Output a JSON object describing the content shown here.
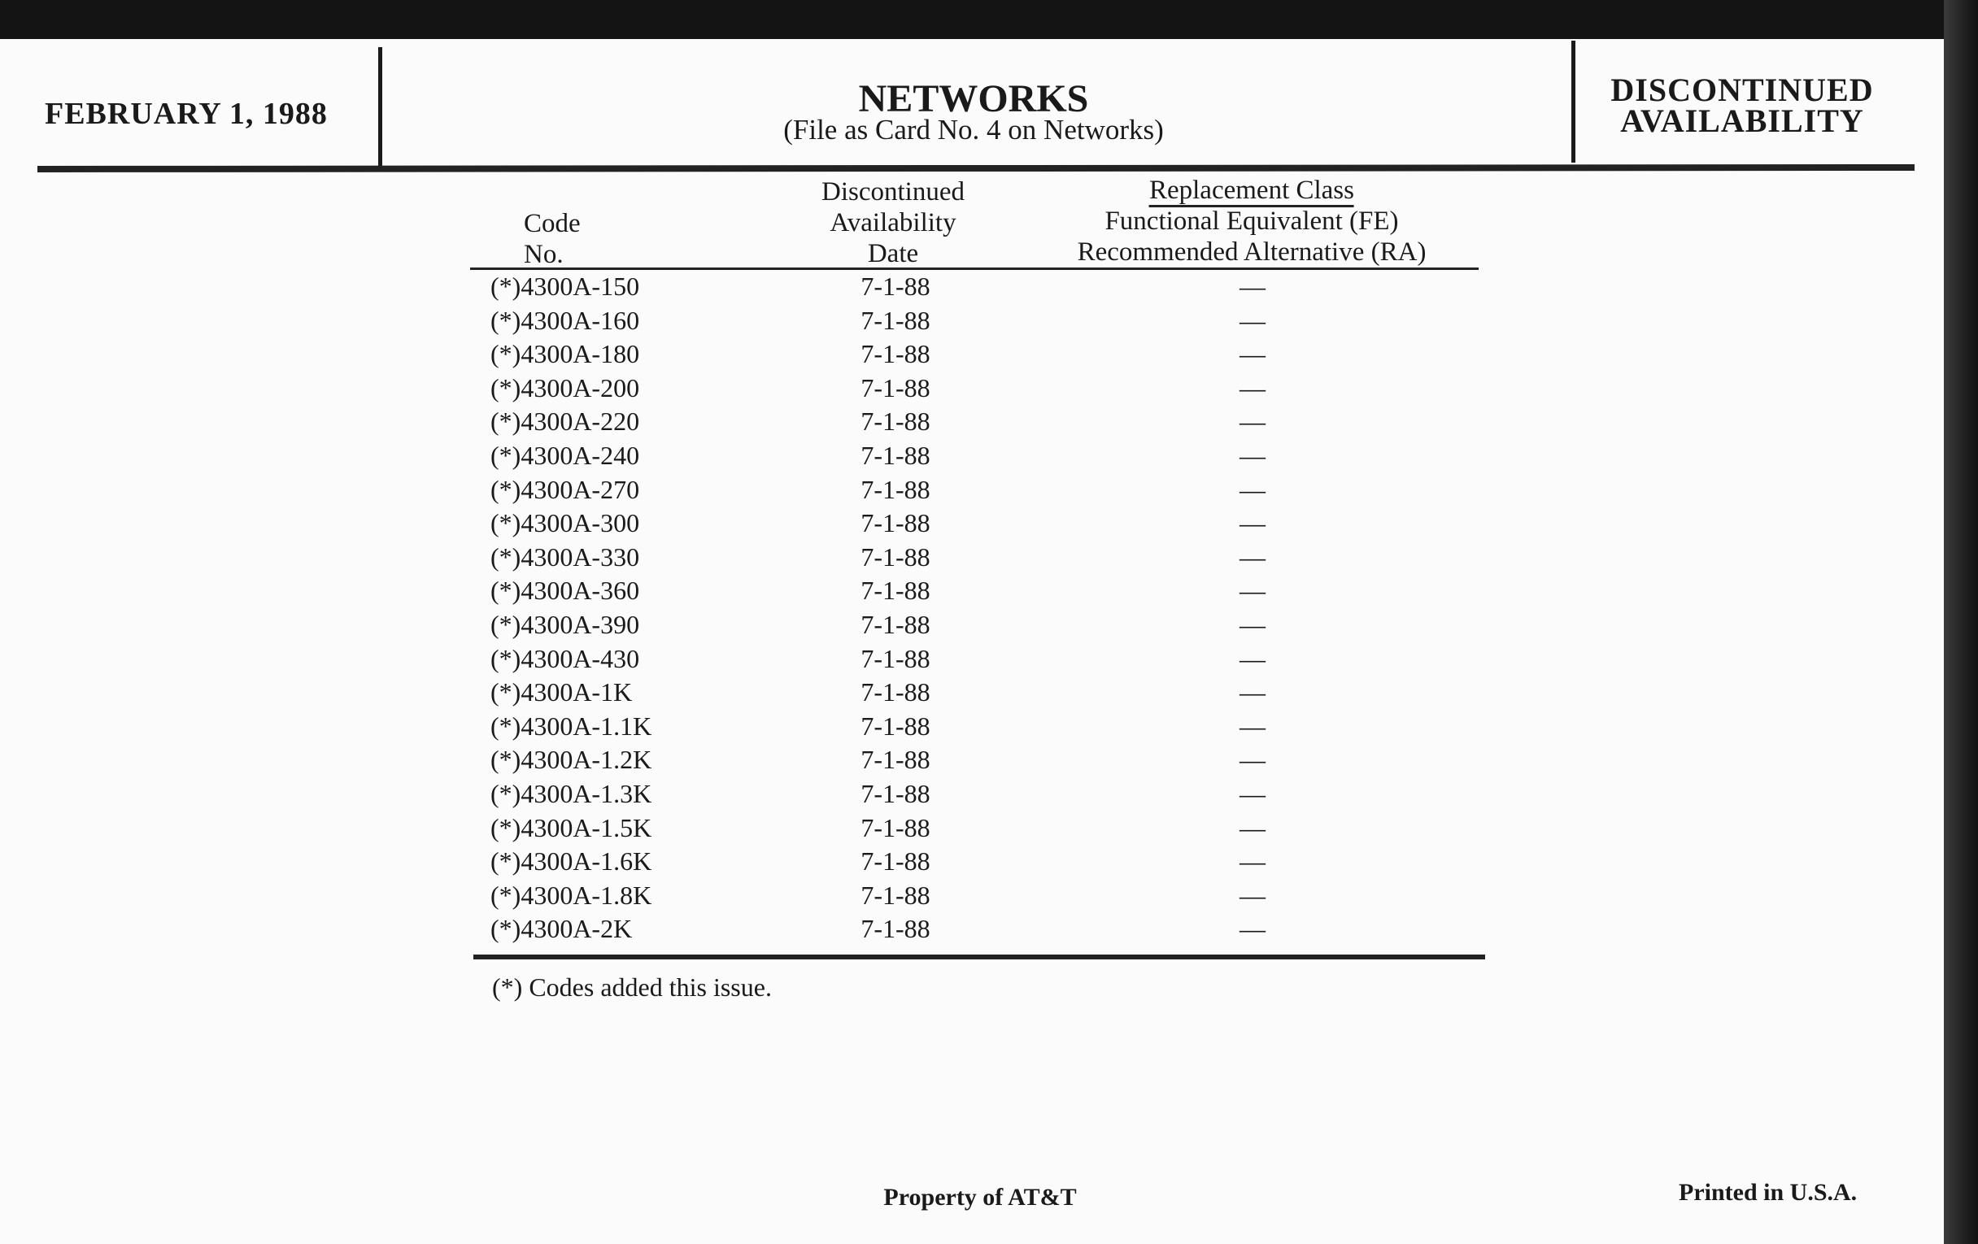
{
  "header": {
    "date": "FEBRUARY 1, 1988",
    "title": "NETWORKS",
    "subtitle": "(File as Card No. 4 on Networks)",
    "section_line1": "DISCONTINUED",
    "section_line2": "AVAILABILITY"
  },
  "table": {
    "columns": {
      "code": [
        "Code",
        "No."
      ],
      "date": [
        "Discontinued",
        "Availability",
        "Date"
      ],
      "replacement": [
        "Replacement Class",
        "Functional Equivalent (FE)",
        "Recommended Alternative (RA)"
      ]
    },
    "rows": [
      {
        "code": "(*)4300A-150",
        "date": "7-1-88",
        "replacement": "—"
      },
      {
        "code": "(*)4300A-160",
        "date": "7-1-88",
        "replacement": "—"
      },
      {
        "code": "(*)4300A-180",
        "date": "7-1-88",
        "replacement": "—"
      },
      {
        "code": "(*)4300A-200",
        "date": "7-1-88",
        "replacement": "—"
      },
      {
        "code": "(*)4300A-220",
        "date": "7-1-88",
        "replacement": "—"
      },
      {
        "code": "(*)4300A-240",
        "date": "7-1-88",
        "replacement": "—"
      },
      {
        "code": "(*)4300A-270",
        "date": "7-1-88",
        "replacement": "—"
      },
      {
        "code": "(*)4300A-300",
        "date": "7-1-88",
        "replacement": "—"
      },
      {
        "code": "(*)4300A-330",
        "date": "7-1-88",
        "replacement": "—"
      },
      {
        "code": "(*)4300A-360",
        "date": "7-1-88",
        "replacement": "—"
      },
      {
        "code": "(*)4300A-390",
        "date": "7-1-88",
        "replacement": "—"
      },
      {
        "code": "(*)4300A-430",
        "date": "7-1-88",
        "replacement": "—"
      },
      {
        "code": "(*)4300A-1K",
        "date": "7-1-88",
        "replacement": "—"
      },
      {
        "code": "(*)4300A-1.1K",
        "date": "7-1-88",
        "replacement": "—"
      },
      {
        "code": "(*)4300A-1.2K",
        "date": "7-1-88",
        "replacement": "—"
      },
      {
        "code": "(*)4300A-1.3K",
        "date": "7-1-88",
        "replacement": "—"
      },
      {
        "code": "(*)4300A-1.5K",
        "date": "7-1-88",
        "replacement": "—"
      },
      {
        "code": "(*)4300A-1.6K",
        "date": "7-1-88",
        "replacement": "—"
      },
      {
        "code": "(*)4300A-1.8K",
        "date": "7-1-88",
        "replacement": "—"
      },
      {
        "code": "(*)4300A-2K",
        "date": "7-1-88",
        "replacement": "—"
      }
    ],
    "footnote": "(*)  Codes added this issue."
  },
  "footer": {
    "property": "Property of AT&T",
    "printed": "Printed in U.S.A."
  }
}
